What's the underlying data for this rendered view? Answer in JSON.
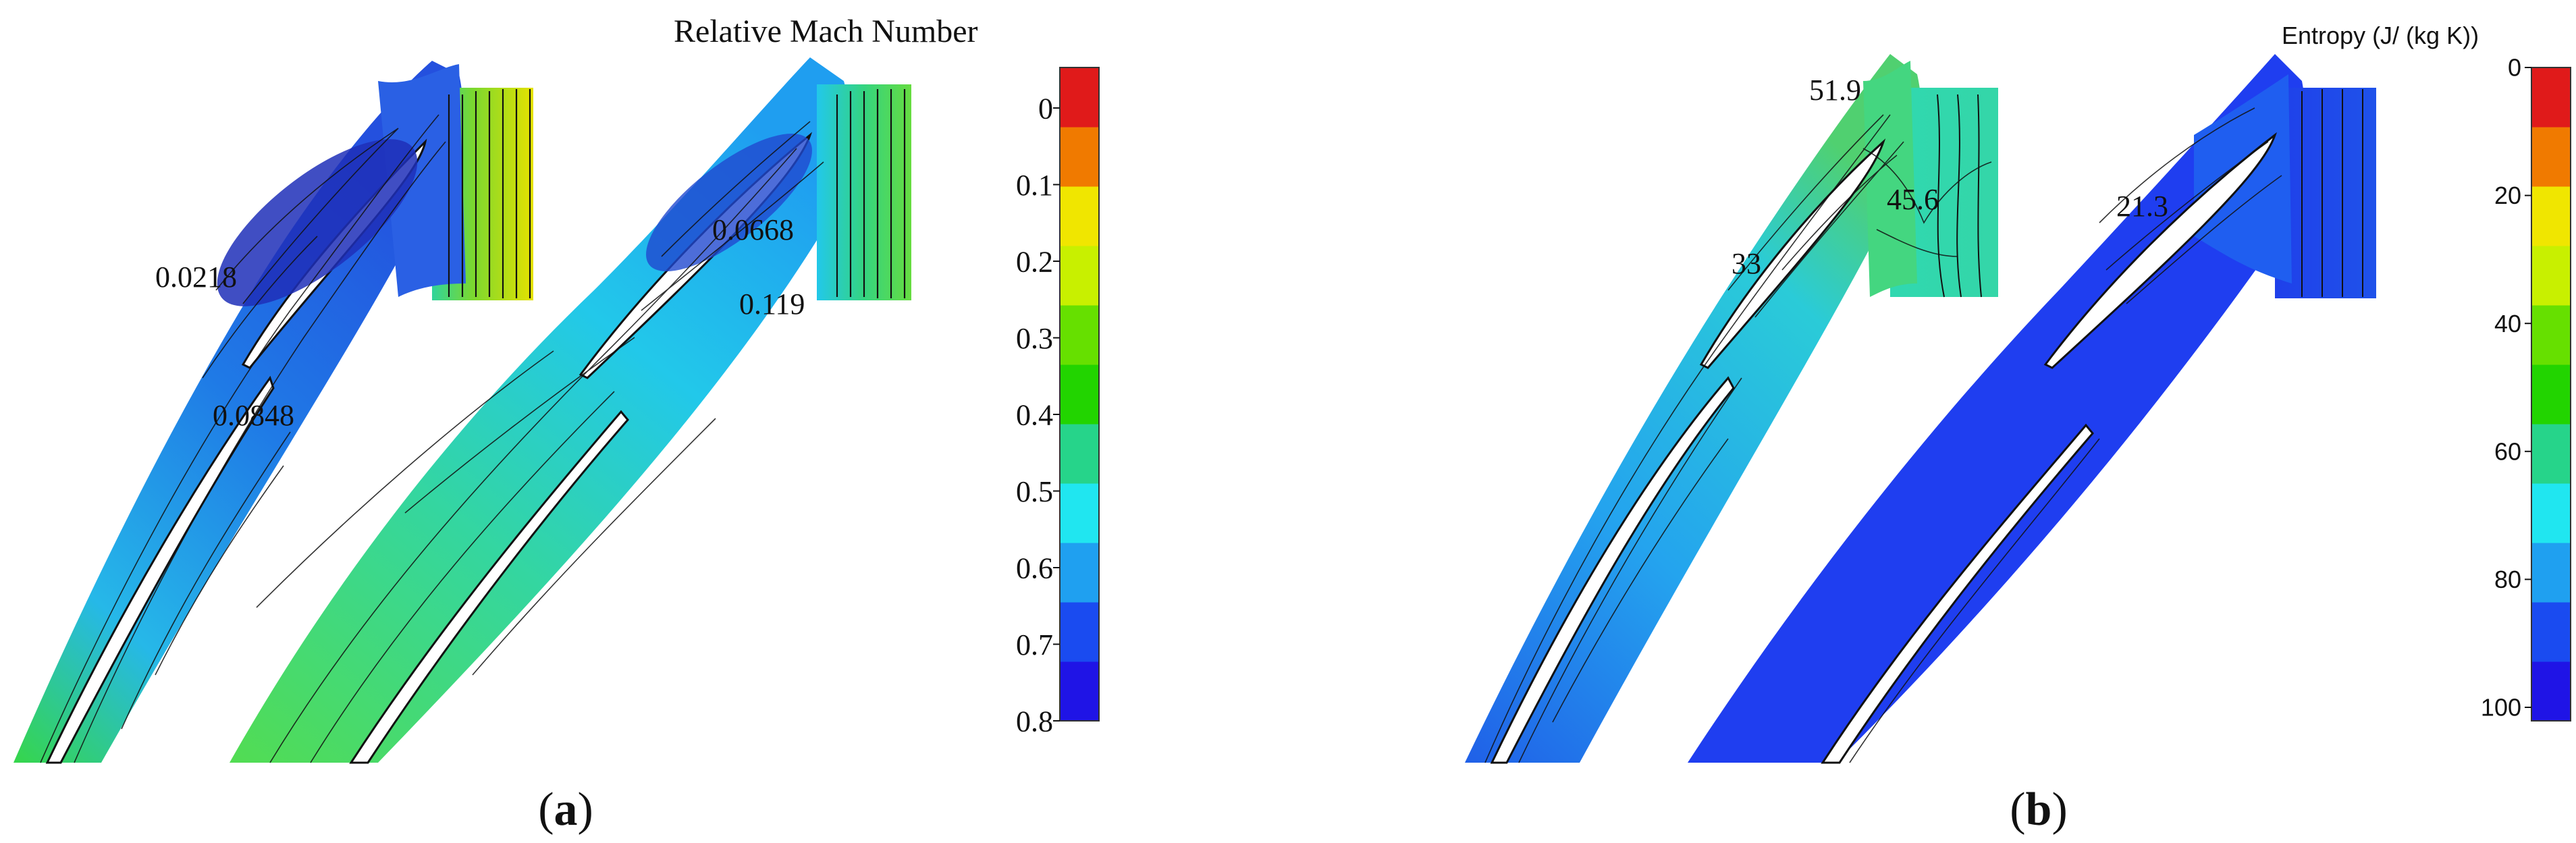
{
  "panels": [
    {
      "id": "a",
      "caption_open": "(",
      "caption_letter": "a",
      "caption_close": ")",
      "colorbar_title": "Relative Mach Number",
      "colorbar_ticks": [
        "0",
        "0.1",
        "0.2",
        "0.3",
        "0.4",
        "0.5",
        "0.6",
        "0.7",
        "0.8"
      ],
      "annotations": [
        "0.0218",
        "0.0848",
        "0.0668",
        "0.119"
      ]
    },
    {
      "id": "b",
      "caption_open": "(",
      "caption_letter": "b",
      "caption_close": ")",
      "colorbar_title": "Entropy (J/ (kg K))",
      "colorbar_ticks": [
        "0",
        "20",
        "40",
        "60",
        "80",
        "100"
      ],
      "annotations": [
        "51.9",
        "45.6",
        "33",
        "21.3"
      ]
    }
  ],
  "colorbar_palette": [
    "#1f14e6",
    "#1a4bf0",
    "#1fa0f0",
    "#20e6f0",
    "#26d48a",
    "#22d400",
    "#66e000",
    "#c8f000",
    "#f0e600",
    "#f07a00",
    "#e01a1a"
  ],
  "field_colors": {
    "deep_blue": "#2a37d8",
    "blue": "#1f6fe6",
    "cyan_blue": "#26a6ee",
    "cyan": "#2ad4ea",
    "green": "#44d46a",
    "yellow_green": "#c7e200",
    "contour": "#111111"
  }
}
